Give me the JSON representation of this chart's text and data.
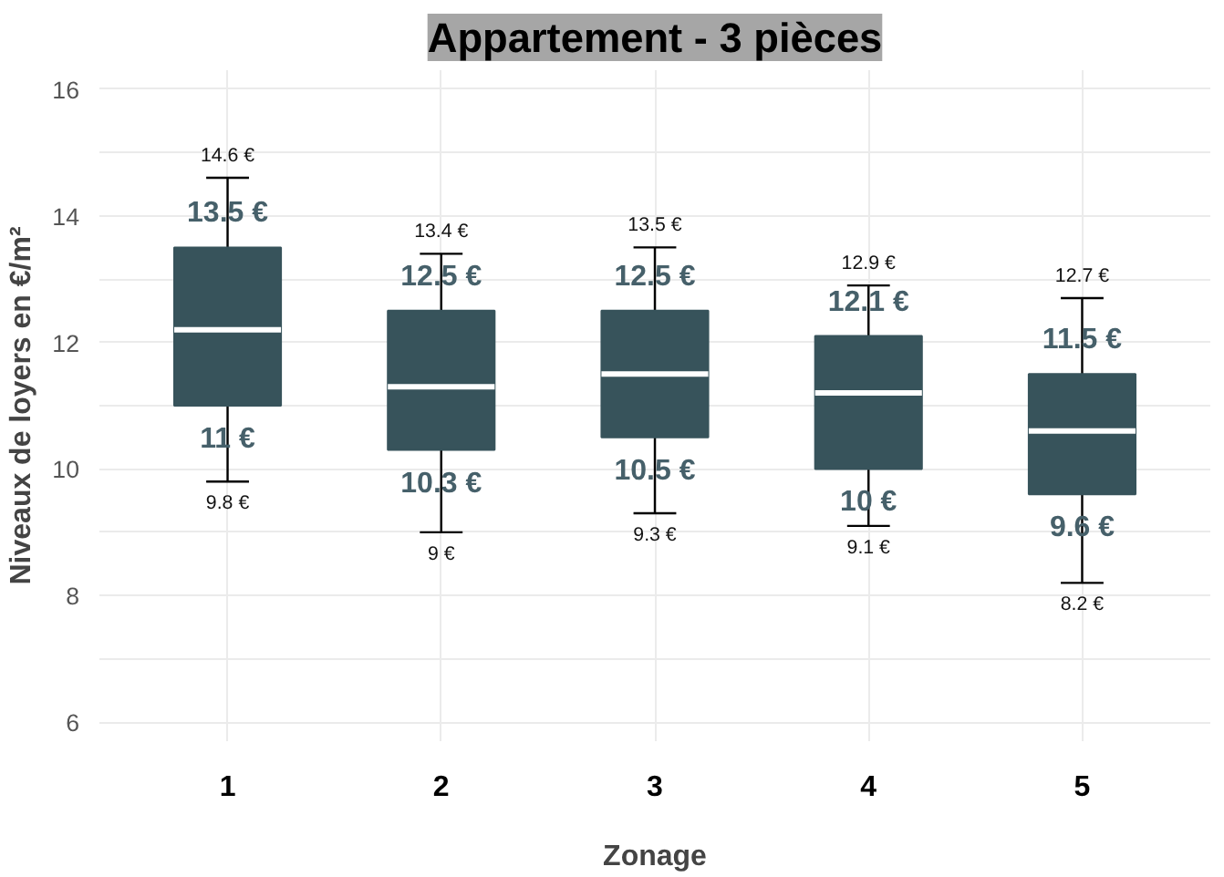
{
  "chart_data": {
    "type": "box",
    "title": "Appartement - 3 pièces",
    "xlabel": "Zonage",
    "ylabel": "Niveaux de loyers en €/m²",
    "categories": [
      "1",
      "2",
      "3",
      "4",
      "5"
    ],
    "color": "#37535b",
    "boxes": [
      {
        "low": 9.8,
        "q1": 11,
        "median": 12.2,
        "q3": 13.5,
        "high": 14.6
      },
      {
        "low": 9,
        "q1": 10.3,
        "median": 11.3,
        "q3": 12.5,
        "high": 13.4
      },
      {
        "low": 9.3,
        "q1": 10.5,
        "median": 11.5,
        "q3": 12.5,
        "high": 13.5
      },
      {
        "low": 9.1,
        "q1": 10,
        "median": 11.2,
        "q3": 12.1,
        "high": 12.9
      },
      {
        "low": 8.2,
        "q1": 9.6,
        "median": 10.6,
        "q3": 11.5,
        "high": 12.7
      }
    ],
    "ylim": [
      5.7,
      16.3
    ],
    "yticks": [
      6,
      {
        "value": 7,
        "label": null
      },
      8,
      {
        "value": 9,
        "label": null
      },
      10,
      {
        "value": 11,
        "label": null
      },
      12,
      {
        "value": 13,
        "label": null
      },
      14,
      {
        "value": 15,
        "label": null
      },
      16
    ],
    "grid": true,
    "annotations": [
      {
        "text": "14.6 €",
        "x": "1",
        "y": 14.6
      },
      {
        "text": "13.5 €",
        "x": "1",
        "y": 13.5
      },
      {
        "text": "11 €",
        "x": "1",
        "y": 11
      },
      {
        "text": "9.8 €",
        "x": "1",
        "y": 9.8
      },
      {
        "text": "13.4 €",
        "x": "2",
        "y": 13.4
      },
      {
        "text": "12.5 €",
        "x": "2",
        "y": 12.5
      },
      {
        "text": "10.3 €",
        "x": "2",
        "y": 10.3
      },
      {
        "text": "9 €",
        "x": "2",
        "y": 9
      },
      {
        "text": "13.5 €",
        "x": "3",
        "y": 13.5
      },
      {
        "text": "12.5 €",
        "x": "3",
        "y": 12.5
      },
      {
        "text": "10.5 €",
        "x": "3",
        "y": 10.5
      },
      {
        "text": "9.3 €",
        "x": "3",
        "y": 9.3
      },
      {
        "text": "12.9 €",
        "x": "4",
        "y": 12.9
      },
      {
        "text": "12.1 €",
        "x": "4",
        "y": 12.1
      },
      {
        "text": "10 €",
        "x": "4",
        "y": 10
      },
      {
        "text": "9.1 €",
        "x": "4",
        "y": 9.1
      },
      {
        "text": "12.7 €",
        "x": "5",
        "y": 12.7
      },
      {
        "text": "11.5 €",
        "x": "5",
        "y": 11.5
      },
      {
        "text": "9.6 €",
        "x": "5",
        "y": 9.6
      },
      {
        "text": "8.2 €",
        "x": "5",
        "y": 8.2
      }
    ]
  }
}
